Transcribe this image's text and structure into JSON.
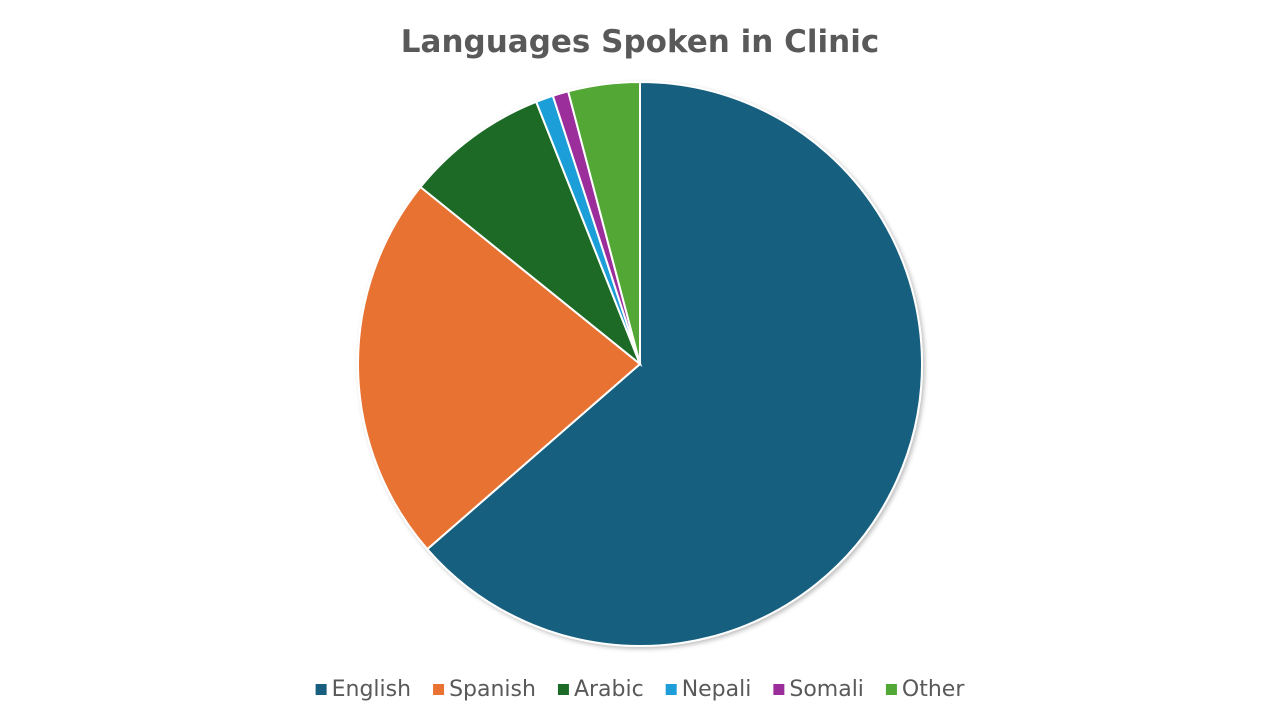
{
  "chart_data": {
    "type": "pie",
    "title": "Languages Spoken in Clinic",
    "categories": [
      "English",
      "Spanish",
      "Arabic",
      "Nepali",
      "Somali",
      "Other"
    ],
    "values": [
      63.6,
      22.2,
      8.2,
      1.0,
      0.9,
      4.1
    ],
    "colors": [
      "#175e7f",
      "#e87232",
      "#1c6b27",
      "#1e9ed8",
      "#9b2e9a",
      "#52a835"
    ],
    "legend": "bottom"
  }
}
